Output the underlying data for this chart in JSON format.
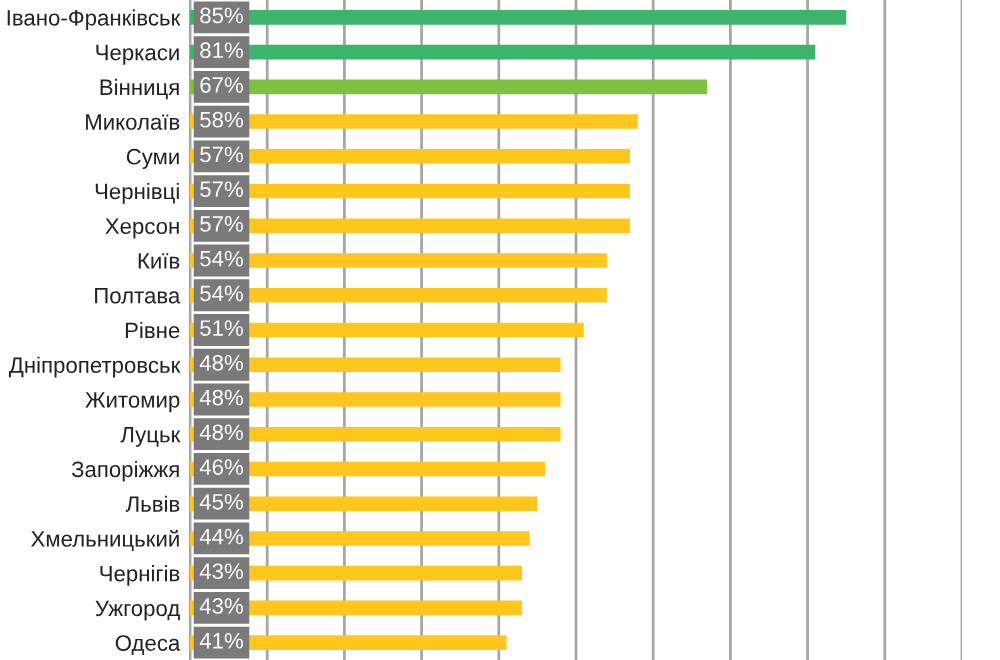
{
  "chart_data": {
    "type": "bar",
    "orientation": "horizontal",
    "categories": [
      "Івано-Франківськ",
      "Черкаси",
      "Вінниця",
      "Миколаїв",
      "Суми",
      "Чернівці",
      "Херсон",
      "Київ",
      "Полтава",
      "Рівне",
      "Дніпропетровськ",
      "Житомир",
      "Луцьк",
      "Запоріжжя",
      "Львів",
      "Хмельницький",
      "Чернігів",
      "Ужгород",
      "Одеса"
    ],
    "values": [
      85,
      81,
      67,
      58,
      57,
      57,
      57,
      54,
      54,
      51,
      48,
      48,
      48,
      46,
      45,
      44,
      43,
      43,
      41
    ],
    "value_labels": [
      "85%",
      "81%",
      "67%",
      "58%",
      "57%",
      "57%",
      "57%",
      "54%",
      "54%",
      "51%",
      "48%",
      "48%",
      "48%",
      "46%",
      "45%",
      "44%",
      "43%",
      "43%",
      "41%"
    ],
    "colors": [
      "#3db36b",
      "#3db36b",
      "#7cc142",
      "#ffc61e",
      "#ffc61e",
      "#ffc61e",
      "#ffc61e",
      "#ffc61e",
      "#ffc61e",
      "#ffc61e",
      "#ffc61e",
      "#ffc61e",
      "#ffc61e",
      "#ffc61e",
      "#ffc61e",
      "#ffc61e",
      "#ffc61e",
      "#ffc61e",
      "#ffc61e"
    ],
    "xlim": [
      0,
      100
    ],
    "xticks": [
      {
        "value": 0,
        "label": null
      },
      {
        "value": 10,
        "label": null
      },
      {
        "value": 20,
        "label": null
      },
      {
        "value": 30,
        "label": null
      },
      {
        "value": 40,
        "label": null
      },
      {
        "value": 50,
        "label": null
      },
      {
        "value": 60,
        "label": null
      },
      {
        "value": 70,
        "label": null
      },
      {
        "value": 80,
        "label": null
      },
      {
        "value": 90,
        "label": null
      },
      {
        "value": 100,
        "label": null
      }
    ],
    "grid": "x",
    "tick_labels": "y"
  }
}
